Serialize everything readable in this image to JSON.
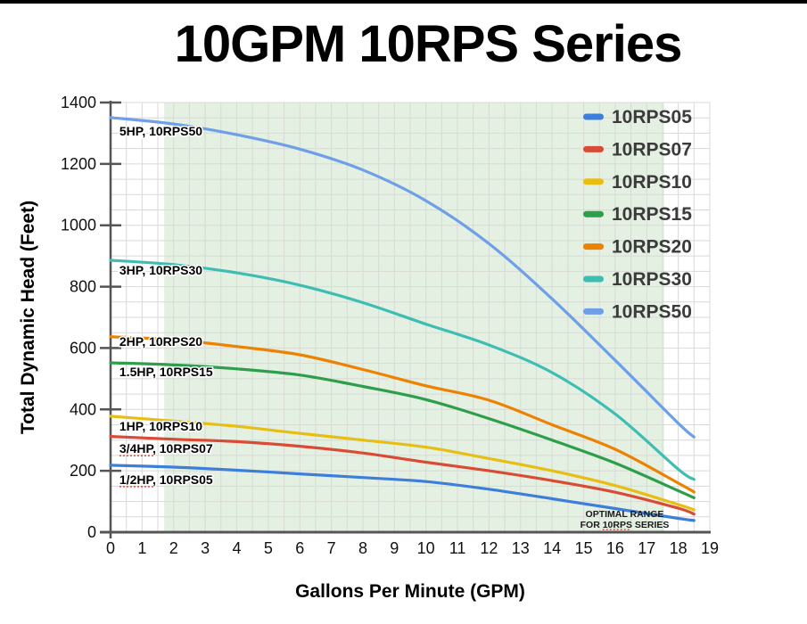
{
  "page": {
    "title": "10GPM 10RPS Series",
    "x_axis_label": "Gallons Per Minute (GPM)",
    "y_axis_label": "Total Dynamic Head (Feet)"
  },
  "chart_data": {
    "type": "line",
    "title": "10GPM 10RPS Series",
    "xlabel": "Gallons Per Minute (GPM)",
    "ylabel": "Total Dynamic Head (Feet)",
    "xlim": [
      0,
      19
    ],
    "ylim": [
      0,
      1400
    ],
    "x_ticks": [
      0,
      1,
      2,
      3,
      4,
      5,
      6,
      7,
      8,
      9,
      10,
      11,
      12,
      13,
      14,
      15,
      16,
      17,
      18,
      19
    ],
    "y_ticks": [
      0,
      200,
      400,
      600,
      800,
      1000,
      1200,
      1400
    ],
    "x_minor_step": 0.5,
    "y_minor_step": 50,
    "grid": true,
    "grid_color": "#d8dad5",
    "axis_color": "#555555",
    "legend_position": "top-right",
    "optimal_band": {
      "x_start": 1.7,
      "x_end": 17.55,
      "color": "#e3f0e2",
      "label_lines": [
        "OPTIMAL RANGE",
        "FOR 10RPS SERIES"
      ],
      "label_center_gpm": 16.3,
      "misspell_underline_token": "10RPS"
    },
    "x": [
      0,
      2,
      4,
      6,
      8,
      10,
      12,
      14,
      16,
      18,
      18.5
    ],
    "series": [
      {
        "name": "10RPS05",
        "inline_label": "1/2HP, 10RPS05",
        "color": "#3D7EDB",
        "values": [
          218,
          212,
          202,
          190,
          178,
          165,
          140,
          109,
          77,
          45,
          38
        ],
        "label_x": 0.28,
        "label_y": 157,
        "misspell_underline_token": "1/2HP"
      },
      {
        "name": "10RPS07",
        "inline_label": "3/4HP, 10RPS07",
        "color": "#D94B35",
        "values": [
          312,
          303,
          295,
          280,
          258,
          228,
          200,
          168,
          130,
          78,
          59
        ],
        "label_x": 0.28,
        "label_y": 258,
        "misspell_underline_token": "3/4HP"
      },
      {
        "name": "10RPS10",
        "inline_label": "1HP, 10RPS10",
        "color": "#E8BE12",
        "values": [
          378,
          362,
          345,
          322,
          300,
          277,
          240,
          200,
          152,
          90,
          73
        ],
        "label_x": 0.28,
        "label_y": 331,
        "misspell_underline_token": ""
      },
      {
        "name": "10RPS15",
        "inline_label": "1.5HP, 10RPS15",
        "color": "#2E9E4B",
        "values": [
          552,
          545,
          532,
          512,
          475,
          432,
          370,
          300,
          225,
          135,
          112
        ],
        "label_x": 0.28,
        "label_y": 508,
        "misspell_underline_token": ""
      },
      {
        "name": "10RPS20",
        "inline_label": "2HP, 10RPS20",
        "color": "#EE8100",
        "values": [
          637,
          627,
          605,
          578,
          530,
          477,
          430,
          350,
          270,
          160,
          131
        ],
        "label_x": 0.28,
        "label_y": 607,
        "misspell_underline_token": ""
      },
      {
        "name": "10RPS30",
        "inline_label": "3HP, 10RPS30",
        "color": "#3EBDB3",
        "values": [
          886,
          872,
          845,
          805,
          748,
          678,
          610,
          520,
          385,
          205,
          172
        ],
        "label_x": 0.28,
        "label_y": 839,
        "misspell_underline_token": ""
      },
      {
        "name": "10RPS50",
        "inline_label": "5HP, 10RPS50",
        "color": "#6F9FE8",
        "values": [
          1351,
          1330,
          1295,
          1248,
          1180,
          1080,
          940,
          760,
          560,
          355,
          310
        ],
        "label_x": 0.28,
        "label_y": 1292,
        "misspell_underline_token": ""
      }
    ],
    "legend": [
      "10RPS05",
      "10RPS07",
      "10RPS10",
      "10RPS15",
      "10RPS20",
      "10RPS30",
      "10RPS50"
    ]
  }
}
